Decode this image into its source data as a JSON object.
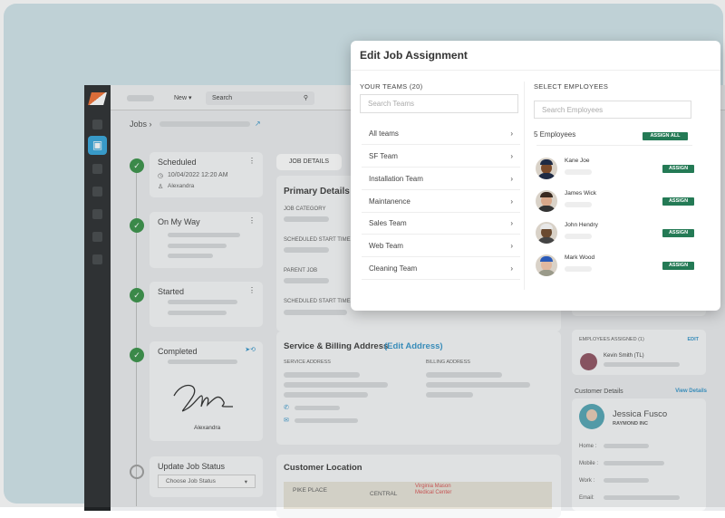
{
  "app": {
    "topbar": {
      "new_label": "New ▾",
      "search_placeholder": "Search"
    },
    "breadcrumb": {
      "root": "Jobs",
      "sep": "›"
    },
    "timeline": [
      {
        "title": "Scheduled",
        "datetime": "10/04/2022 12:20 AM",
        "user": "Alexandra",
        "status": "done"
      },
      {
        "title": "On My Way",
        "status": "done"
      },
      {
        "title": "Started",
        "status": "done"
      },
      {
        "title": "Completed",
        "status": "done",
        "signature_name": "Alexandra"
      },
      {
        "title": "Update Job Status",
        "status": "pending",
        "select_placeholder": "Choose Job Status"
      }
    ],
    "job_details_tab": "JOB DETAILS",
    "primary_details": {
      "title": "Primary Details",
      "fields": [
        "JOB CATEGORY",
        "SCHEDULED START TIME",
        "PARENT JOB",
        "SCHEDULED START TIME"
      ]
    },
    "address": {
      "title": "Service & Billing Address",
      "edit_link": "(Edit Address)",
      "service_label": "SERVICE ADDRESS",
      "billing_label": "BILLING ADDRESS"
    },
    "location": {
      "title": "Customer Location",
      "map_labels": [
        "PIKE PLACE",
        "CENTRAL",
        "Virginia Mason Medical Center"
      ]
    },
    "employees_assigned": {
      "title": "EMPLOYEES ASSIGNED (1)",
      "edit": "EDIT",
      "employee": "Kevin Smith  (TL)"
    },
    "customer": {
      "section_title": "Customer Details",
      "view_link": "View Details",
      "name": "Jessica Fusco",
      "company": "RAYMOND INC",
      "fields": [
        "Home :",
        "Mobile :",
        "Work :",
        "Email:"
      ]
    }
  },
  "modal": {
    "title": "Edit Job Assignment",
    "teams_header": "YOUR TEAMS (20)",
    "teams_search_placeholder": "Search Teams",
    "teams": [
      "All teams",
      "SF Team",
      "Installation Team",
      "Maintanence",
      "Sales Team",
      "Web Team",
      "Cleaning Team"
    ],
    "employees_header": "SELECT EMPLOYEES",
    "employees_search_placeholder": "Search Employees",
    "employees_count": "5 Employees",
    "assign_all_label": "ASSIGN ALL",
    "employees": [
      {
        "name": "Kane Joe",
        "assign_label": "ASSIGN"
      },
      {
        "name": "James Wick",
        "assign_label": "ASSIGN"
      },
      {
        "name": "John Hendry",
        "assign_label": "ASSIGN"
      },
      {
        "name": "Mark Wood",
        "assign_label": "ASSIGN"
      }
    ]
  },
  "colors": {
    "accent_green": "#247a55",
    "status_green": "#2e8b3e",
    "link_blue": "#2a8fc6",
    "sidebar_active": "#2aa0d8"
  }
}
